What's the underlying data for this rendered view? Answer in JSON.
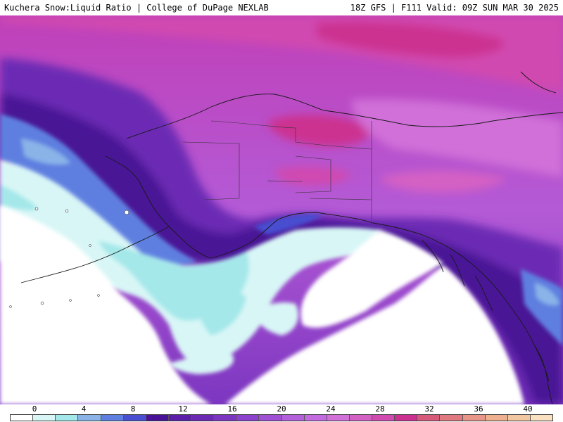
{
  "header": {
    "left_title": "Kuchera Snow:Liquid Ratio | College of DuPage NEXLAB",
    "right_title": "18Z GFS | F111 Valid: 09Z SUN MAR 30 2025"
  },
  "legend": {
    "ticks": [
      "0",
      "4",
      "8",
      "12",
      "16",
      "20",
      "24",
      "28",
      "32",
      "36",
      "40"
    ],
    "colors": [
      "#ffffff",
      "#d8f6f6",
      "#a5e8ea",
      "#8ab4e8",
      "#5f7fe0",
      "#4a4ed0",
      "#4a1296",
      "#5c1ea8",
      "#6c2ab4",
      "#7c36c0",
      "#8c42cc",
      "#a050d4",
      "#b460dc",
      "#c46ae0",
      "#d070d8",
      "#d460c4",
      "#d04ab0",
      "#cc3090",
      "#d85a7a",
      "#e07a80",
      "#e8968a",
      "#eeb08e",
      "#f2c6a0",
      "#f8e0c0"
    ]
  },
  "map": {
    "region": "Alaska / North Pacific",
    "colors": {
      "ocean_clear": "#ffffff",
      "light_cyan": "#d8f6f6",
      "cyan": "#a5e8ea",
      "blue": "#5f7fe0",
      "deep_purple": "#4a1296",
      "purple": "#7c36c0",
      "violet": "#b460dc",
      "magenta": "#d070d8",
      "pink": "#cc3090"
    }
  }
}
